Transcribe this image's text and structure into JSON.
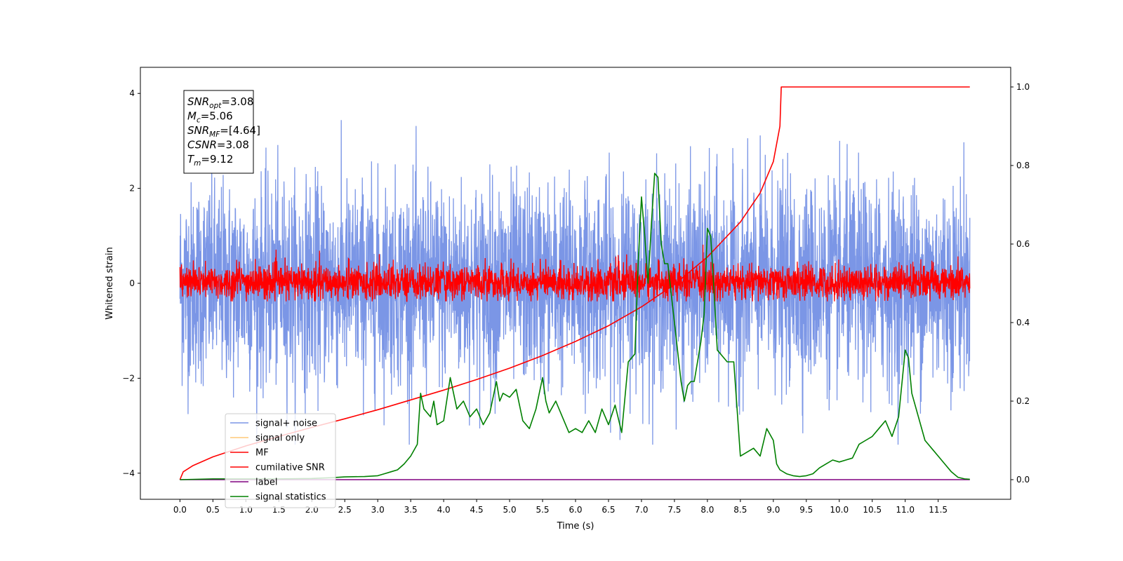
{
  "chart_data": {
    "type": "line",
    "xlabel": "Time (s)",
    "ylabel": "Whitened strain",
    "xlim": [
      -0.6,
      12.6
    ],
    "ylim_left": [
      -4.55,
      4.55
    ],
    "ylim_right": [
      -0.05,
      1.05
    ],
    "x_ticks": [
      "0.0",
      "0.5",
      "1.0",
      "1.5",
      "2.0",
      "2.5",
      "3.0",
      "3.5",
      "4.0",
      "4.5",
      "5.0",
      "5.5",
      "6.0",
      "6.5",
      "7.0",
      "7.5",
      "8.0",
      "8.5",
      "9.0",
      "9.5",
      "10.0",
      "10.5",
      "11.0",
      "11.5"
    ],
    "y_ticks_left": [
      "4",
      "2",
      "0",
      "−2",
      "−4"
    ],
    "y_ticks_right": [
      "1.0",
      "0.8",
      "0.6",
      "0.4",
      "0.2",
      "0.0"
    ],
    "info_box": [
      {
        "name": "SNR",
        "sub": "opt",
        "value": "=3.08"
      },
      {
        "name": "M",
        "sub": "c",
        "value": "=5.06"
      },
      {
        "name": "SNR",
        "sub": "MF",
        "value": "=[4.64]"
      },
      {
        "name": "CSNR",
        "sub": "",
        "value": "=3.08"
      },
      {
        "name": "T",
        "sub": "m",
        "value": "=9.12"
      }
    ],
    "legend": {
      "placement": "lower-left",
      "entries": [
        {
          "label": "signal+ noise",
          "color": "#7b96e6"
        },
        {
          "label": "signal only",
          "color": "#ffc978"
        },
        {
          "label": "MF",
          "color": "#ff0000"
        },
        {
          "label": "cumilative SNR",
          "color": "#ff0000"
        },
        {
          "label": "label",
          "color": "#800080"
        },
        {
          "label": "signal statistics",
          "color": "#008000"
        }
      ]
    },
    "series": [
      {
        "name": "signal+ noise",
        "axis": "left",
        "color": "#7b96e6",
        "description": "dense noise band",
        "t_end": 11.98,
        "approx_envelope": [
          -3.5,
          3.7
        ]
      },
      {
        "name": "MF",
        "axis": "left",
        "color": "#ff0000",
        "t_end": 11.98,
        "approx_envelope": [
          -0.4,
          0.8
        ]
      },
      {
        "name": "cumilative SNR",
        "axis": "right",
        "color": "#ff0000",
        "t_merge": 9.12,
        "x": [
          0.0,
          0.05,
          0.2,
          0.5,
          1.0,
          1.5,
          2.0,
          2.5,
          3.0,
          3.5,
          4.0,
          4.5,
          5.0,
          5.5,
          6.0,
          6.5,
          7.0,
          7.5,
          8.0,
          8.5,
          8.8,
          9.0,
          9.1,
          9.12,
          9.5,
          10.0,
          10.5,
          11.0,
          11.5,
          11.98
        ],
        "y": [
          0.0,
          0.02,
          0.036,
          0.058,
          0.086,
          0.11,
          0.133,
          0.155,
          0.178,
          0.203,
          0.228,
          0.255,
          0.284,
          0.316,
          0.352,
          0.392,
          0.44,
          0.497,
          0.567,
          0.656,
          0.73,
          0.81,
          0.9,
          1.0,
          1.0,
          1.0,
          1.0,
          1.0,
          1.0,
          1.0
        ]
      },
      {
        "name": "label",
        "axis": "right",
        "color": "#800080",
        "x": [
          0.0,
          11.98
        ],
        "y": [
          0.0,
          0.0
        ]
      },
      {
        "name": "signal statistics",
        "axis": "right",
        "color": "#008000",
        "x": [
          0.0,
          0.5,
          1.0,
          1.5,
          2.0,
          2.3,
          2.5,
          2.8,
          3.0,
          3.1,
          3.2,
          3.3,
          3.4,
          3.5,
          3.6,
          3.65,
          3.7,
          3.8,
          3.85,
          3.9,
          4.0,
          4.1,
          4.15,
          4.2,
          4.3,
          4.4,
          4.5,
          4.6,
          4.7,
          4.8,
          4.85,
          4.9,
          5.0,
          5.1,
          5.2,
          5.3,
          5.4,
          5.5,
          5.55,
          5.6,
          5.7,
          5.8,
          5.9,
          6.0,
          6.1,
          6.2,
          6.3,
          6.4,
          6.5,
          6.6,
          6.7,
          6.8,
          6.9,
          6.95,
          7.0,
          7.05,
          7.1,
          7.15,
          7.2,
          7.25,
          7.3,
          7.35,
          7.4,
          7.5,
          7.6,
          7.65,
          7.7,
          7.75,
          7.8,
          7.9,
          7.95,
          8.0,
          8.05,
          8.1,
          8.15,
          8.2,
          8.3,
          8.4,
          8.5,
          8.6,
          8.7,
          8.8,
          8.9,
          9.0,
          9.05,
          9.1,
          9.2,
          9.3,
          9.4,
          9.5,
          9.6,
          9.7,
          9.8,
          9.9,
          10.0,
          10.1,
          10.2,
          10.3,
          10.4,
          10.5,
          10.6,
          10.7,
          10.8,
          10.9,
          11.0,
          11.05,
          11.1,
          11.2,
          11.3,
          11.4,
          11.5,
          11.6,
          11.7,
          11.8,
          11.9,
          11.98
        ],
        "y": [
          0.0,
          0.002,
          0.002,
          0.002,
          0.003,
          0.005,
          0.007,
          0.008,
          0.01,
          0.015,
          0.02,
          0.025,
          0.04,
          0.06,
          0.09,
          0.22,
          0.18,
          0.16,
          0.2,
          0.14,
          0.15,
          0.26,
          0.22,
          0.18,
          0.2,
          0.16,
          0.18,
          0.14,
          0.17,
          0.25,
          0.2,
          0.22,
          0.21,
          0.23,
          0.15,
          0.13,
          0.18,
          0.26,
          0.2,
          0.17,
          0.2,
          0.16,
          0.12,
          0.13,
          0.12,
          0.15,
          0.12,
          0.18,
          0.14,
          0.19,
          0.12,
          0.3,
          0.32,
          0.55,
          0.72,
          0.62,
          0.5,
          0.65,
          0.78,
          0.77,
          0.6,
          0.55,
          0.55,
          0.4,
          0.25,
          0.2,
          0.24,
          0.25,
          0.25,
          0.35,
          0.42,
          0.64,
          0.62,
          0.48,
          0.33,
          0.32,
          0.3,
          0.3,
          0.06,
          0.07,
          0.08,
          0.06,
          0.13,
          0.1,
          0.04,
          0.025,
          0.015,
          0.01,
          0.008,
          0.01,
          0.015,
          0.03,
          0.04,
          0.05,
          0.045,
          0.05,
          0.055,
          0.09,
          0.1,
          0.11,
          0.13,
          0.15,
          0.11,
          0.16,
          0.33,
          0.31,
          0.22,
          0.16,
          0.1,
          0.08,
          0.06,
          0.04,
          0.02,
          0.006,
          0.002,
          0.001
        ]
      }
    ]
  }
}
